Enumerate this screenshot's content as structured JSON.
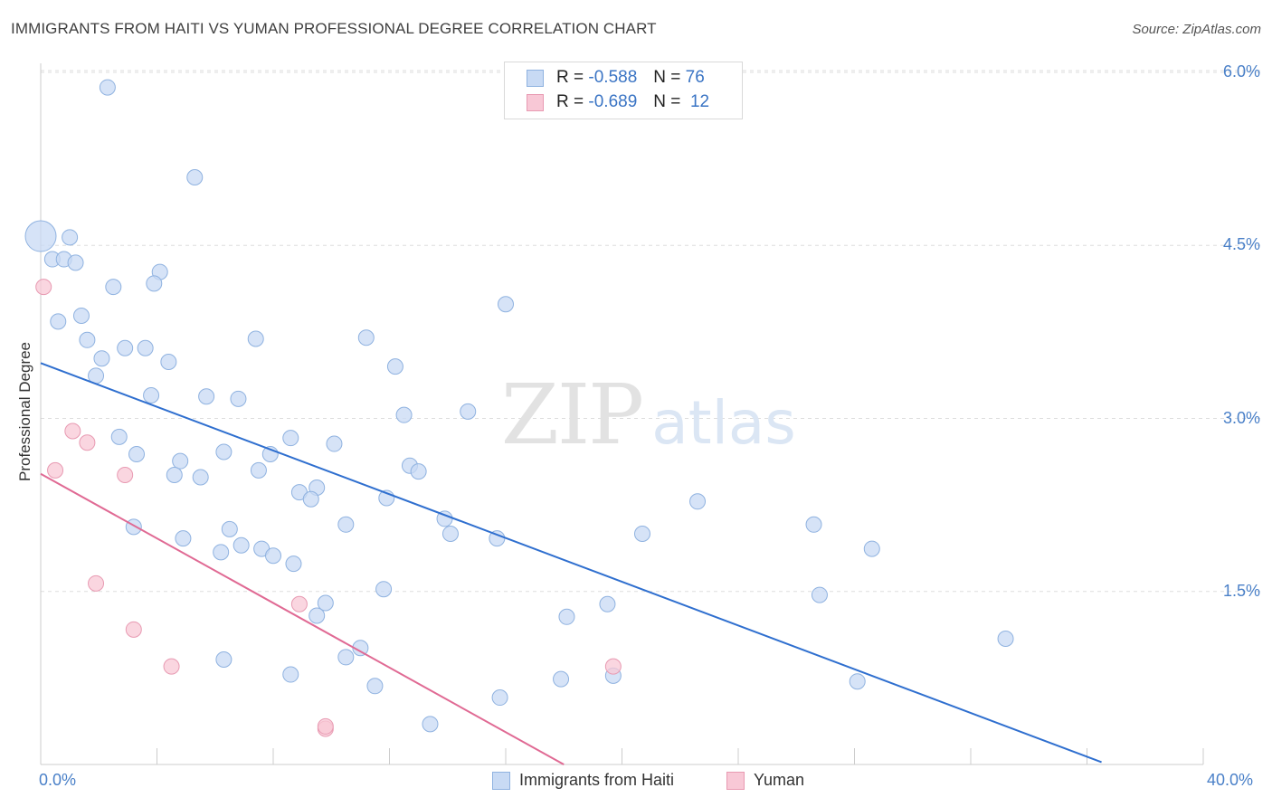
{
  "title": "IMMIGRANTS FROM HAITI VS YUMAN PROFESSIONAL DEGREE CORRELATION CHART",
  "source": "Source: ZipAtlas.com",
  "legend": {
    "rows": [
      {
        "r_label": "R =",
        "r_value": "-0.588",
        "n_label": "N =",
        "n_value": "76"
      },
      {
        "r_label": "R =",
        "r_value": "-0.689",
        "n_label": "N =",
        "n_value": "12"
      }
    ]
  },
  "bottom_legend": {
    "haiti": "Immigrants from Haiti",
    "yuman": "Yuman"
  },
  "colors": {
    "haiti_fill": "#c8daf4",
    "haiti_stroke": "#8fb2e0",
    "haiti_line": "#2f6fcf",
    "yuman_fill": "#f8c8d6",
    "yuman_stroke": "#e89ab2",
    "yuman_line": "#e06a94",
    "tick": "#4a80c8",
    "grid": "#dddddd"
  },
  "chart_data": {
    "type": "scatter",
    "title": "IMMIGRANTS FROM HAITI VS YUMAN PROFESSIONAL DEGREE CORRELATION CHART",
    "xlabel": "",
    "ylabel": "Professional Degree",
    "xlim": [
      0,
      40
    ],
    "ylim": [
      0,
      6.3
    ],
    "x_tick_labels": [
      "0.0%",
      "40.0%"
    ],
    "y_ticks": [
      1.5,
      3.0,
      4.5,
      6.0
    ],
    "y_tick_labels": [
      "1.5%",
      "3.0%",
      "4.5%",
      "6.0%"
    ],
    "grid": true,
    "legend_position": "top-center",
    "series": [
      {
        "name": "Immigrants from Haiti",
        "r": -0.588,
        "n": 76,
        "trend": {
          "x": [
            0,
            36.5
          ],
          "y": [
            3.48,
            0.02
          ]
        },
        "points": [
          {
            "x": 0.0,
            "y": 4.58,
            "big": true
          },
          {
            "x": 2.3,
            "y": 5.87
          },
          {
            "x": 5.3,
            "y": 5.09
          },
          {
            "x": 1.0,
            "y": 4.57
          },
          {
            "x": 0.4,
            "y": 4.38
          },
          {
            "x": 0.8,
            "y": 4.38
          },
          {
            "x": 1.2,
            "y": 4.35
          },
          {
            "x": 4.1,
            "y": 4.27
          },
          {
            "x": 3.9,
            "y": 4.17
          },
          {
            "x": 2.5,
            "y": 4.14
          },
          {
            "x": 0.6,
            "y": 3.84
          },
          {
            "x": 1.4,
            "y": 3.89
          },
          {
            "x": 16.0,
            "y": 3.99
          },
          {
            "x": 1.6,
            "y": 3.68
          },
          {
            "x": 2.9,
            "y": 3.61
          },
          {
            "x": 3.6,
            "y": 3.61
          },
          {
            "x": 7.4,
            "y": 3.69
          },
          {
            "x": 11.2,
            "y": 3.7
          },
          {
            "x": 2.1,
            "y": 3.52
          },
          {
            "x": 4.4,
            "y": 3.49
          },
          {
            "x": 12.2,
            "y": 3.45
          },
          {
            "x": 1.9,
            "y": 3.37
          },
          {
            "x": 3.8,
            "y": 3.2
          },
          {
            "x": 5.7,
            "y": 3.19
          },
          {
            "x": 6.8,
            "y": 3.17
          },
          {
            "x": 12.5,
            "y": 3.03
          },
          {
            "x": 14.7,
            "y": 3.06
          },
          {
            "x": 2.7,
            "y": 2.84
          },
          {
            "x": 8.6,
            "y": 2.83
          },
          {
            "x": 10.1,
            "y": 2.78
          },
          {
            "x": 3.3,
            "y": 2.69
          },
          {
            "x": 6.3,
            "y": 2.71
          },
          {
            "x": 7.9,
            "y": 2.69
          },
          {
            "x": 4.8,
            "y": 2.63
          },
          {
            "x": 12.7,
            "y": 2.59
          },
          {
            "x": 13.0,
            "y": 2.54
          },
          {
            "x": 4.6,
            "y": 2.51
          },
          {
            "x": 5.5,
            "y": 2.49
          },
          {
            "x": 7.5,
            "y": 2.55
          },
          {
            "x": 9.5,
            "y": 2.4
          },
          {
            "x": 8.9,
            "y": 2.36
          },
          {
            "x": 9.3,
            "y": 2.3
          },
          {
            "x": 11.9,
            "y": 2.31
          },
          {
            "x": 22.6,
            "y": 2.28
          },
          {
            "x": 3.2,
            "y": 2.06
          },
          {
            "x": 6.5,
            "y": 2.04
          },
          {
            "x": 10.5,
            "y": 2.08
          },
          {
            "x": 13.9,
            "y": 2.13
          },
          {
            "x": 14.1,
            "y": 2.0
          },
          {
            "x": 15.7,
            "y": 1.96
          },
          {
            "x": 20.7,
            "y": 2.0
          },
          {
            "x": 26.6,
            "y": 2.08
          },
          {
            "x": 4.9,
            "y": 1.96
          },
          {
            "x": 6.9,
            "y": 1.9
          },
          {
            "x": 7.6,
            "y": 1.87
          },
          {
            "x": 28.6,
            "y": 1.87
          },
          {
            "x": 6.2,
            "y": 1.84
          },
          {
            "x": 8.0,
            "y": 1.81
          },
          {
            "x": 8.7,
            "y": 1.74
          },
          {
            "x": 11.8,
            "y": 1.52
          },
          {
            "x": 26.8,
            "y": 1.47
          },
          {
            "x": 9.8,
            "y": 1.4
          },
          {
            "x": 19.5,
            "y": 1.39
          },
          {
            "x": 9.5,
            "y": 1.29
          },
          {
            "x": 18.1,
            "y": 1.28
          },
          {
            "x": 11.0,
            "y": 1.01
          },
          {
            "x": 33.2,
            "y": 1.09
          },
          {
            "x": 10.5,
            "y": 0.93
          },
          {
            "x": 6.3,
            "y": 0.91
          },
          {
            "x": 8.6,
            "y": 0.78
          },
          {
            "x": 17.9,
            "y": 0.74
          },
          {
            "x": 19.7,
            "y": 0.77
          },
          {
            "x": 28.1,
            "y": 0.72
          },
          {
            "x": 11.5,
            "y": 0.68
          },
          {
            "x": 15.8,
            "y": 0.58
          },
          {
            "x": 13.4,
            "y": 0.35
          }
        ]
      },
      {
        "name": "Yuman",
        "r": -0.689,
        "n": 12,
        "trend": {
          "x": [
            0,
            18.0
          ],
          "y": [
            2.52,
            0.0
          ]
        },
        "points": [
          {
            "x": 0.1,
            "y": 4.14
          },
          {
            "x": 1.1,
            "y": 2.89
          },
          {
            "x": 1.6,
            "y": 2.79
          },
          {
            "x": 0.5,
            "y": 2.55
          },
          {
            "x": 2.9,
            "y": 2.51
          },
          {
            "x": 1.9,
            "y": 1.57
          },
          {
            "x": 8.9,
            "y": 1.39
          },
          {
            "x": 3.2,
            "y": 1.17
          },
          {
            "x": 4.5,
            "y": 0.85
          },
          {
            "x": 19.7,
            "y": 0.85
          },
          {
            "x": 9.8,
            "y": 0.31
          },
          {
            "x": 9.8,
            "y": 0.33
          }
        ]
      }
    ]
  }
}
